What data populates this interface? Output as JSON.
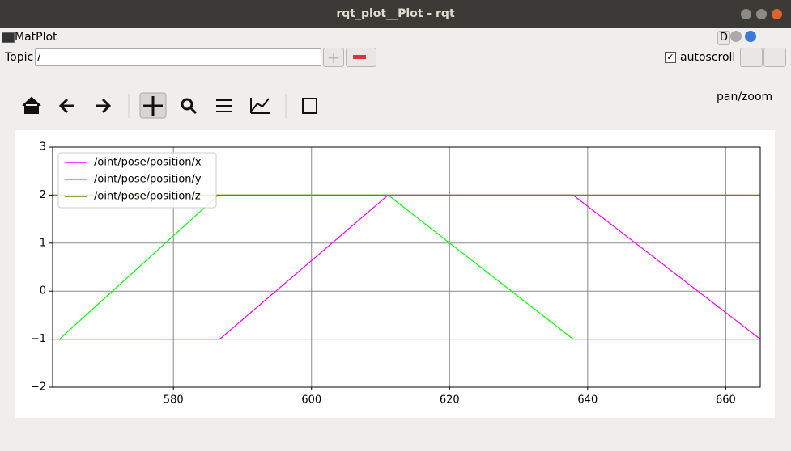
{
  "window": {
    "title": "rqt_plot__Plot - rqt"
  },
  "plugin": {
    "title": "MatPlot",
    "badge": "D"
  },
  "topic": {
    "label": "Topic",
    "value": "/"
  },
  "autoscroll": "autoscroll",
  "mode": "pan/zoom",
  "chart_data": {
    "type": "line",
    "series": [
      {
        "name": "/oint/pose/position/x",
        "color": "#ff00ff",
        "x": [
          562.5,
          586.7,
          611.1,
          637.9,
          665
        ],
        "values": [
          -1,
          -1,
          2,
          2,
          -1
        ]
      },
      {
        "name": "/oint/pose/position/y",
        "color": "#00ff00",
        "x": [
          563.5,
          586.5,
          611.1,
          637.9,
          665
        ],
        "values": [
          -1,
          2,
          2,
          -1,
          -1
        ]
      },
      {
        "name": "/oint/pose/position/z",
        "color": "#808000",
        "x": [
          562.5,
          665
        ],
        "values": [
          2,
          2
        ]
      }
    ],
    "xlim": [
      562.5,
      665
    ],
    "xticks": [
      580,
      600,
      620,
      640,
      660
    ],
    "ylim": [
      -2,
      3
    ],
    "yticks": [
      {
        "value": -2,
        "label": "−2"
      },
      {
        "value": -1,
        "label": "−1"
      },
      0,
      1,
      2,
      3
    ],
    "grid": true,
    "legend": "upper left"
  }
}
